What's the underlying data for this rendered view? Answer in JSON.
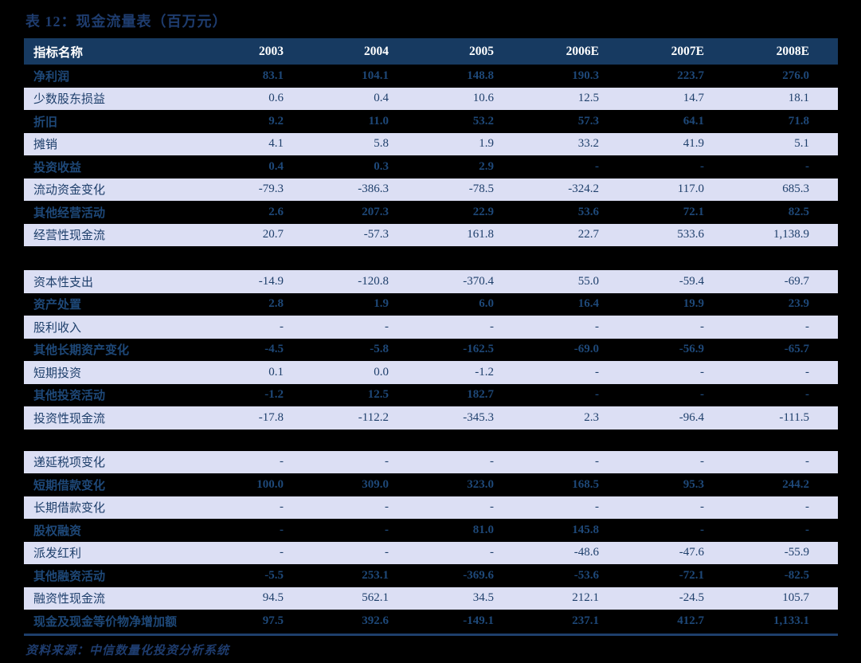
{
  "page": {
    "title": "表 12：现金流量表（百万元）",
    "source_note": "资料来源：中信数量化投资分析系统"
  },
  "colors": {
    "page_bg": "#000000",
    "title_text": "#1e3c6e",
    "header_bg": "#173a61",
    "header_text": "#ffffff",
    "light_row_bg": "#dcdff4",
    "light_row_text": "#1e3f6b",
    "dark_row_text": "#1e4878",
    "rule_color": "#1e3f6b"
  },
  "table": {
    "columns": [
      "指标名称",
      "2003",
      "2004",
      "2005",
      "2006E",
      "2007E",
      "2008E"
    ],
    "sections": [
      {
        "first_shade": "dark",
        "rows": [
          {
            "label": "净利润",
            "values": [
              "83.1",
              "104.1",
              "148.8",
              "190.3",
              "223.7",
              "276.0"
            ]
          },
          {
            "label": "少数股东损益",
            "values": [
              "0.6",
              "0.4",
              "10.6",
              "12.5",
              "14.7",
              "18.1"
            ]
          },
          {
            "label": "折旧",
            "values": [
              "9.2",
              "11.0",
              "53.2",
              "57.3",
              "64.1",
              "71.8"
            ]
          },
          {
            "label": "摊销",
            "values": [
              "4.1",
              "5.8",
              "1.9",
              "33.2",
              "41.9",
              "5.1"
            ]
          },
          {
            "label": "投资收益",
            "values": [
              "0.4",
              "0.3",
              "2.9",
              "-",
              "-",
              "-"
            ]
          },
          {
            "label": "流动资金变化",
            "values": [
              "-79.3",
              "-386.3",
              "-78.5",
              "-324.2",
              "117.0",
              "685.3"
            ]
          },
          {
            "label": "其他经营活动",
            "values": [
              "2.6",
              "207.3",
              "22.9",
              "53.6",
              "72.1",
              "82.5"
            ]
          },
          {
            "label": "经营性现金流",
            "values": [
              "20.7",
              "-57.3",
              "161.8",
              "22.7",
              "533.6",
              "1,138.9"
            ]
          }
        ]
      },
      {
        "first_shade": "light",
        "rows": [
          {
            "label": "资本性支出",
            "values": [
              "-14.9",
              "-120.8",
              "-370.4",
              "55.0",
              "-59.4",
              "-69.7"
            ]
          },
          {
            "label": "资产处置",
            "values": [
              "2.8",
              "1.9",
              "6.0",
              "16.4",
              "19.9",
              "23.9"
            ]
          },
          {
            "label": "股利收入",
            "values": [
              "-",
              "-",
              "-",
              "-",
              "-",
              "-"
            ]
          },
          {
            "label": "其他长期资产变化",
            "values": [
              "-4.5",
              "-5.8",
              "-162.5",
              "-69.0",
              "-56.9",
              "-65.7"
            ]
          },
          {
            "label": "短期投资",
            "values": [
              "0.1",
              "0.0",
              "-1.2",
              "-",
              "-",
              "-"
            ]
          },
          {
            "label": "其他投资活动",
            "values": [
              "-1.2",
              "12.5",
              "182.7",
              "-",
              "-",
              "-"
            ]
          },
          {
            "label": "投资性现金流",
            "values": [
              "-17.8",
              "-112.2",
              "-345.3",
              "2.3",
              "-96.4",
              "-111.5"
            ]
          }
        ]
      },
      {
        "first_shade": "light",
        "rows": [
          {
            "label": "递延税项变化",
            "values": [
              "-",
              "-",
              "-",
              "-",
              "-",
              "-"
            ]
          },
          {
            "label": "短期借款变化",
            "values": [
              "100.0",
              "309.0",
              "323.0",
              "168.5",
              "95.3",
              "244.2"
            ]
          },
          {
            "label": "长期借款变化",
            "values": [
              "-",
              "-",
              "-",
              "-",
              "-",
              "-"
            ]
          },
          {
            "label": "股权融资",
            "values": [
              "-",
              "-",
              "81.0",
              "145.8",
              "-",
              "-"
            ]
          },
          {
            "label": "派发红利",
            "values": [
              "-",
              "-",
              "-",
              "-48.6",
              "-47.6",
              "-55.9"
            ]
          },
          {
            "label": "其他融资活动",
            "values": [
              "-5.5",
              "253.1",
              "-369.6",
              "-53.6",
              "-72.1",
              "-82.5"
            ]
          },
          {
            "label": "融资性现金流",
            "values": [
              "94.5",
              "562.1",
              "34.5",
              "212.1",
              "-24.5",
              "105.7"
            ]
          },
          {
            "label": "现金及现金等价物净增加额",
            "values": [
              "97.5",
              "392.6",
              "-149.1",
              "237.1",
              "412.7",
              "1,133.1"
            ]
          }
        ]
      }
    ]
  }
}
